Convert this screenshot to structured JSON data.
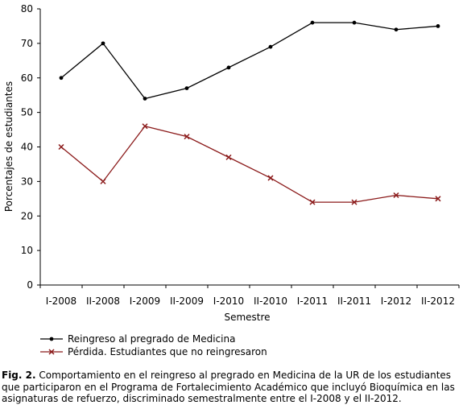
{
  "chart_data": {
    "type": "line",
    "categories": [
      "I-2008",
      "II-2008",
      "I-2009",
      "II-2009",
      "I-2010",
      "II-2010",
      "I-2011",
      "II-2011",
      "I-2012",
      "II-2012"
    ],
    "series": [
      {
        "name": "Reingreso al pregrado de Medicina",
        "values": [
          60,
          70,
          54,
          57,
          63,
          69,
          76,
          76,
          74,
          75
        ],
        "color": "#000000",
        "marker": "dot"
      },
      {
        "name": "Pérdida. Estudiantes que no reingresaron",
        "values": [
          40,
          30,
          46,
          43,
          37,
          31,
          24,
          24,
          26,
          25
        ],
        "color": "#8b1a1a",
        "marker": "x"
      }
    ],
    "xlabel": "Semestre",
    "ylabel": "Porcentajes de estudiantes",
    "ylim": [
      0,
      80
    ],
    "yticks": [
      0,
      10,
      20,
      30,
      40,
      50,
      60,
      70,
      80
    ],
    "grid": false,
    "legend_position": "bottom-left"
  },
  "caption": {
    "label": "Fig. 2.",
    "text": "Comportamiento en el reingreso al pregrado en Medicina de la UR de los estudiantes que participaron en el Programa de Fortalecimiento Académico que incluyó Bioquímica en las asignaturas de refuerzo, discriminado semestralmente entre el I-2008 y el II-2012."
  }
}
